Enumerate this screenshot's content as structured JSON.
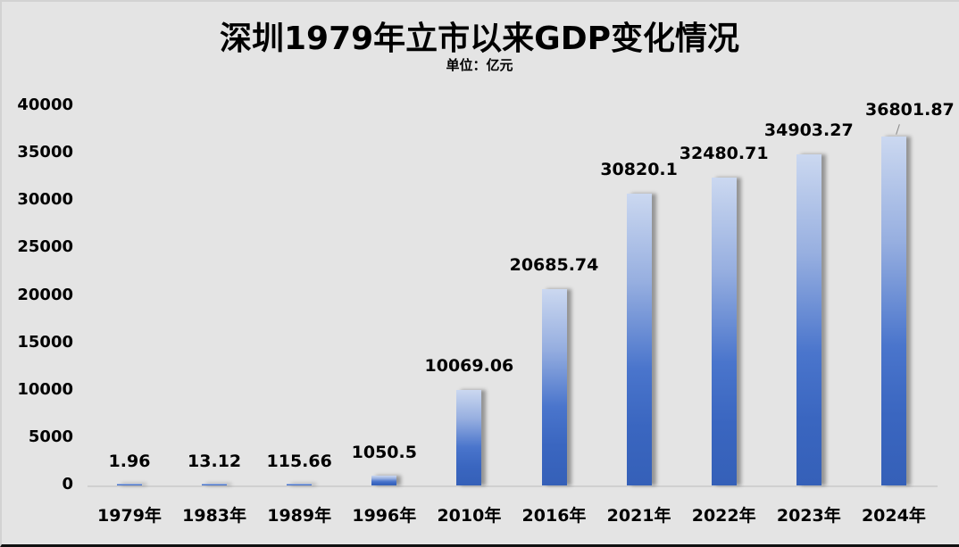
{
  "title": "深圳1979年立市以来GDP变化情况",
  "subtitle": "单位：亿元",
  "colors": {
    "background": "#e4e4e4",
    "bar_top": "#cbd8f0",
    "bar_bottom": "#3560b8"
  },
  "y_axis": {
    "ticks": [
      "40000",
      "35000",
      "30000",
      "25000",
      "20000",
      "15000",
      "10000",
      "5000",
      "0"
    ]
  },
  "chart_data": {
    "type": "bar",
    "title": "深圳1979年立市以来GDP变化情况",
    "subtitle": "单位：亿元",
    "xlabel": "",
    "ylabel": "",
    "ylim": [
      0,
      40000
    ],
    "y_ticks": [
      0,
      5000,
      10000,
      15000,
      20000,
      25000,
      30000,
      35000,
      40000
    ],
    "grid": false,
    "legend": "none",
    "categories": [
      "1979年",
      "1983年",
      "1989年",
      "1996年",
      "2010年",
      "2016年",
      "2021年",
      "2022年",
      "2023年",
      "2024年"
    ],
    "values": [
      1.96,
      13.12,
      115.66,
      1050.5,
      10069.06,
      20685.74,
      30820.1,
      32480.71,
      34903.27,
      36801.87
    ],
    "data_labels": [
      "1.96",
      "13.12",
      "115.66",
      "1050.5",
      "10069.06",
      "20685.74",
      "30820.1",
      "32480.71",
      "34903.27",
      "36801.87"
    ]
  }
}
